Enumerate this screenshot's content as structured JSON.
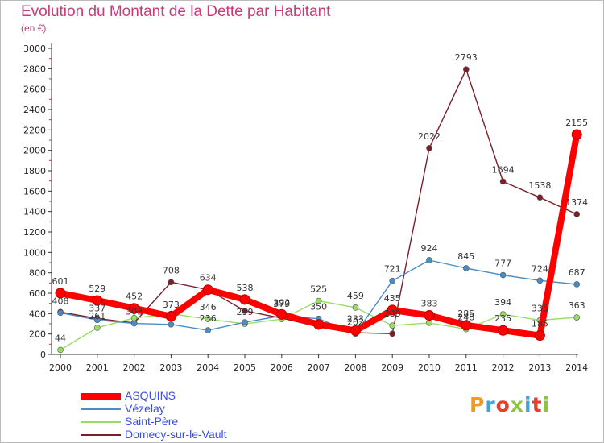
{
  "header": {
    "title": "Evolution du Montant de la Dette par Habitant",
    "subtitle": "(en €)"
  },
  "brand": {
    "text": "Proxiti",
    "colors": [
      "#f29a1c",
      "#3aa6dd",
      "#e83e2c",
      "#8cc63f",
      "#3aa6dd",
      "#e83e2c",
      "#8cc63f"
    ]
  },
  "chart_data": {
    "type": "line",
    "x": [
      "2000",
      "2001",
      "2002",
      "2003",
      "2004",
      "2005",
      "2006",
      "2007",
      "2008",
      "2009",
      "2010",
      "2011",
      "2012",
      "2013",
      "2014"
    ],
    "ylim": [
      0,
      3000
    ],
    "yticks": [
      0,
      200,
      400,
      600,
      800,
      1000,
      1200,
      1400,
      1600,
      1800,
      2000,
      2200,
      2400,
      2600,
      2800,
      3000
    ],
    "grid": false,
    "legend_position": "bottom-left",
    "series": [
      {
        "name": "Domecy-sur-le-Vault",
        "color": "#7a1f2a",
        "values": [
          416,
          351,
          309,
          708,
          634,
          427,
          356,
          271,
          212,
          203,
          2022,
          2793,
          1694,
          1538,
          1374
        ],
        "labels": [
          "",
          "",
          "",
          "708",
          "",
          "",
          "",
          "",
          "",
          "",
          "2022",
          "2793",
          "1694",
          "1538",
          "1374"
        ]
      },
      {
        "name": "Saint-Père",
        "color": "#99dd66",
        "values": [
          44,
          261,
          357,
          398,
          346,
          299,
          346,
          525,
          459,
          283,
          309,
          248,
          394,
          335,
          363
        ],
        "labels": [
          "44",
          "261",
          "",
          "",
          "346",
          "299",
          "",
          "525",
          "459",
          "283",
          "",
          "248",
          "394",
          "335",
          "363"
        ]
      },
      {
        "name": "Vézelay",
        "color": "#4a8cc6",
        "values": [
          408,
          337,
          303,
          294,
          236,
          315,
          379,
          350,
          202,
          721,
          924,
          845,
          777,
          724,
          687
        ],
        "labels": [
          "408",
          "337",
          "303",
          "",
          "236",
          "",
          "379",
          "350",
          "202",
          "721",
          "924",
          "845",
          "777",
          "724",
          "687"
        ]
      },
      {
        "name": "ASQUINS",
        "color": "#ff0000",
        "values": [
          601,
          529,
          452,
          373,
          634,
          538,
          392,
          294,
          233,
          435,
          383,
          285,
          235,
          185,
          2155
        ],
        "labels": [
          "601",
          "529",
          "452",
          "373",
          "634",
          "538",
          "392",
          "",
          "233",
          "435",
          "383",
          "285",
          "235",
          "185",
          "2155"
        ]
      }
    ]
  }
}
